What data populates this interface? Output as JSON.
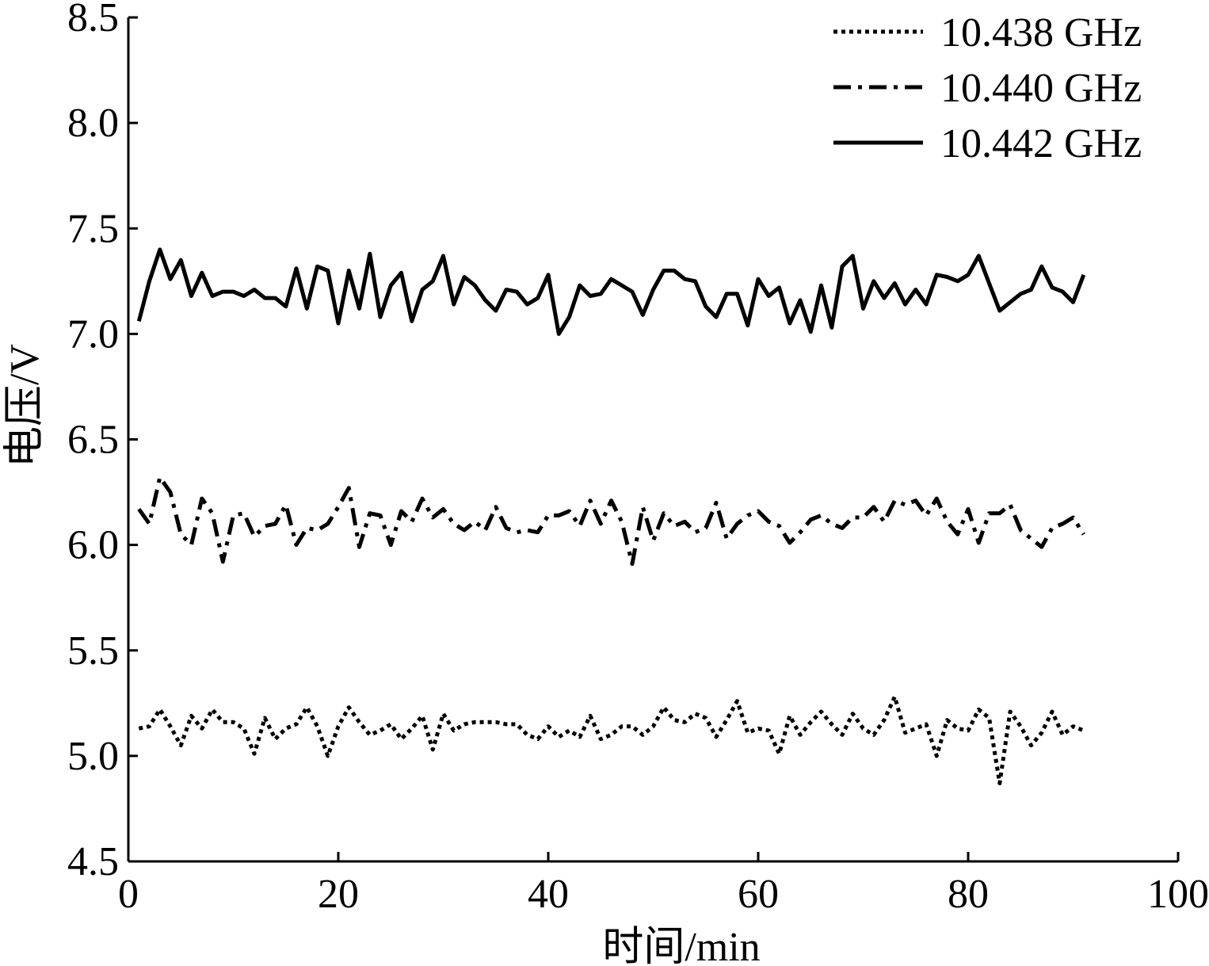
{
  "chart_data": {
    "type": "line",
    "xlabel": "时间/min",
    "ylabel": "电压/V",
    "x": [
      1,
      2,
      3,
      4,
      5,
      6,
      7,
      8,
      9,
      10,
      11,
      12,
      13,
      14,
      15,
      16,
      17,
      18,
      19,
      20,
      21,
      22,
      23,
      24,
      25,
      26,
      27,
      28,
      29,
      30,
      31,
      32,
      33,
      34,
      35,
      36,
      37,
      38,
      39,
      40,
      41,
      42,
      43,
      44,
      45,
      46,
      47,
      48,
      49,
      50,
      51,
      52,
      53,
      54,
      55,
      56,
      57,
      58,
      59,
      60,
      61,
      62,
      63,
      64,
      65,
      66,
      67,
      68,
      69,
      70,
      71,
      72,
      73,
      74,
      75,
      76,
      77,
      78,
      79,
      80,
      81,
      82,
      83,
      84,
      85,
      86,
      87,
      88,
      89,
      90,
      91
    ],
    "series": [
      {
        "name": "10.438 GHz",
        "color": "#000000",
        "dash": "dotted",
        "values": [
          5.13,
          5.14,
          5.22,
          5.14,
          5.05,
          5.19,
          5.13,
          5.22,
          5.16,
          5.16,
          5.13,
          5.01,
          5.18,
          5.08,
          5.13,
          5.15,
          5.23,
          5.14,
          5.0,
          5.14,
          5.23,
          5.16,
          5.1,
          5.12,
          5.15,
          5.08,
          5.13,
          5.19,
          5.03,
          5.2,
          5.12,
          5.15,
          5.16,
          5.16,
          5.16,
          5.15,
          5.15,
          5.1,
          5.08,
          5.14,
          5.09,
          5.12,
          5.09,
          5.19,
          5.08,
          5.1,
          5.14,
          5.14,
          5.1,
          5.14,
          5.23,
          5.17,
          5.16,
          5.2,
          5.18,
          5.09,
          5.17,
          5.26,
          5.11,
          5.13,
          5.12,
          5.01,
          5.19,
          5.1,
          5.16,
          5.21,
          5.15,
          5.1,
          5.2,
          5.13,
          5.1,
          5.17,
          5.28,
          5.11,
          5.13,
          5.15,
          5.0,
          5.17,
          5.13,
          5.12,
          5.22,
          5.18,
          4.87,
          5.21,
          5.14,
          5.05,
          5.11,
          5.21,
          5.1,
          5.14,
          5.12
        ]
      },
      {
        "name": "10.440 GHz",
        "color": "#000000",
        "dash": "dashdot",
        "values": [
          6.17,
          6.1,
          6.32,
          6.25,
          6.05,
          6.0,
          6.22,
          6.15,
          5.92,
          6.14,
          6.15,
          6.04,
          6.09,
          6.1,
          6.19,
          6.0,
          6.08,
          6.07,
          6.1,
          6.18,
          6.27,
          5.99,
          6.15,
          6.14,
          6.0,
          6.16,
          6.11,
          6.22,
          6.13,
          6.17,
          6.1,
          6.07,
          6.11,
          6.07,
          6.18,
          6.08,
          6.06,
          6.07,
          6.06,
          6.14,
          6.14,
          6.16,
          6.09,
          6.21,
          6.1,
          6.21,
          6.11,
          5.91,
          6.18,
          6.02,
          6.15,
          6.09,
          6.11,
          6.06,
          6.08,
          6.2,
          6.03,
          6.1,
          6.14,
          6.16,
          6.11,
          6.09,
          6.01,
          6.06,
          6.12,
          6.14,
          6.1,
          6.08,
          6.13,
          6.13,
          6.18,
          6.11,
          6.21,
          6.19,
          6.21,
          6.14,
          6.22,
          6.11,
          6.05,
          6.17,
          6.01,
          6.15,
          6.15,
          6.19,
          6.07,
          6.03,
          5.99,
          6.08,
          6.1,
          6.13,
          6.05
        ]
      },
      {
        "name": "10.442 GHz",
        "color": "#000000",
        "dash": "solid",
        "values": [
          7.06,
          7.25,
          7.4,
          7.26,
          7.35,
          7.18,
          7.29,
          7.18,
          7.2,
          7.2,
          7.18,
          7.21,
          7.17,
          7.17,
          7.13,
          7.31,
          7.12,
          7.32,
          7.3,
          7.05,
          7.3,
          7.12,
          7.38,
          7.08,
          7.23,
          7.29,
          7.06,
          7.21,
          7.25,
          7.37,
          7.14,
          7.27,
          7.23,
          7.16,
          7.11,
          7.21,
          7.2,
          7.14,
          7.17,
          7.28,
          7.0,
          7.08,
          7.23,
          7.18,
          7.19,
          7.26,
          7.23,
          7.2,
          7.09,
          7.21,
          7.3,
          7.3,
          7.26,
          7.25,
          7.13,
          7.08,
          7.19,
          7.19,
          7.04,
          7.26,
          7.18,
          7.22,
          7.05,
          7.16,
          7.01,
          7.23,
          7.03,
          7.32,
          7.37,
          7.12,
          7.25,
          7.17,
          7.24,
          7.14,
          7.21,
          7.14,
          7.28,
          7.27,
          7.25,
          7.28,
          7.37,
          7.24,
          7.11,
          7.15,
          7.19,
          7.21,
          7.32,
          7.22,
          7.2,
          7.15,
          7.28
        ]
      }
    ],
    "xlim": [
      0,
      100
    ],
    "xticks": [
      0,
      20,
      40,
      60,
      80,
      100
    ],
    "ylim": [
      4.5,
      8.5
    ],
    "yticks": [
      4.5,
      {
        "value": 5,
        "label": "5.0"
      },
      5.5,
      {
        "value": 6,
        "label": "6.0"
      },
      6.5,
      {
        "value": 7,
        "label": "7.0"
      },
      7.5,
      {
        "value": 8,
        "label": "8.0"
      },
      8.5
    ],
    "legend": "upper right",
    "grid": false
  }
}
